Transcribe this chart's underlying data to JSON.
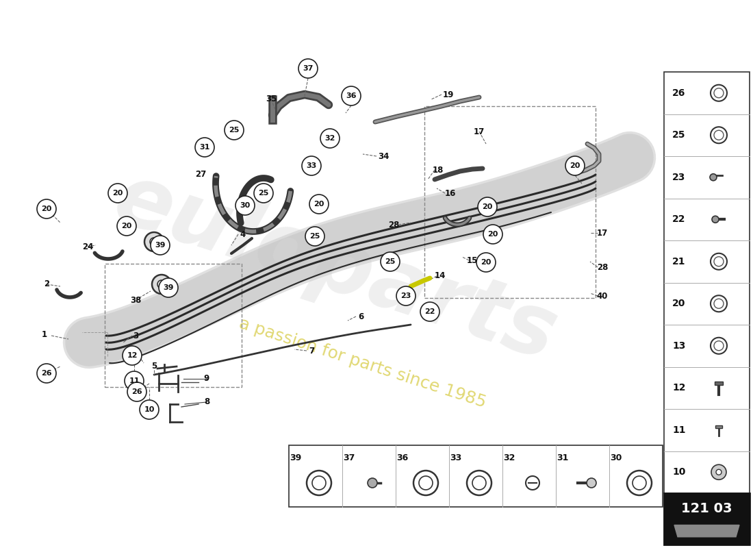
{
  "bg_color": "#ffffff",
  "part_number_box": "121 03",
  "colors": {
    "line": "#222222",
    "circle_fill": "#ffffff",
    "circle_edge": "#222222",
    "panel_bg": "#ffffff",
    "panel_edge": "#333333",
    "watermark_grey": "#cccccc",
    "watermark_yellow": "#d4c84a",
    "dashed_box": "#888888"
  },
  "right_panel_items": [
    26,
    25,
    23,
    22,
    21,
    20,
    13,
    12,
    11,
    10
  ],
  "bottom_panel_items": [
    39,
    37,
    36,
    33,
    32,
    31,
    30
  ]
}
